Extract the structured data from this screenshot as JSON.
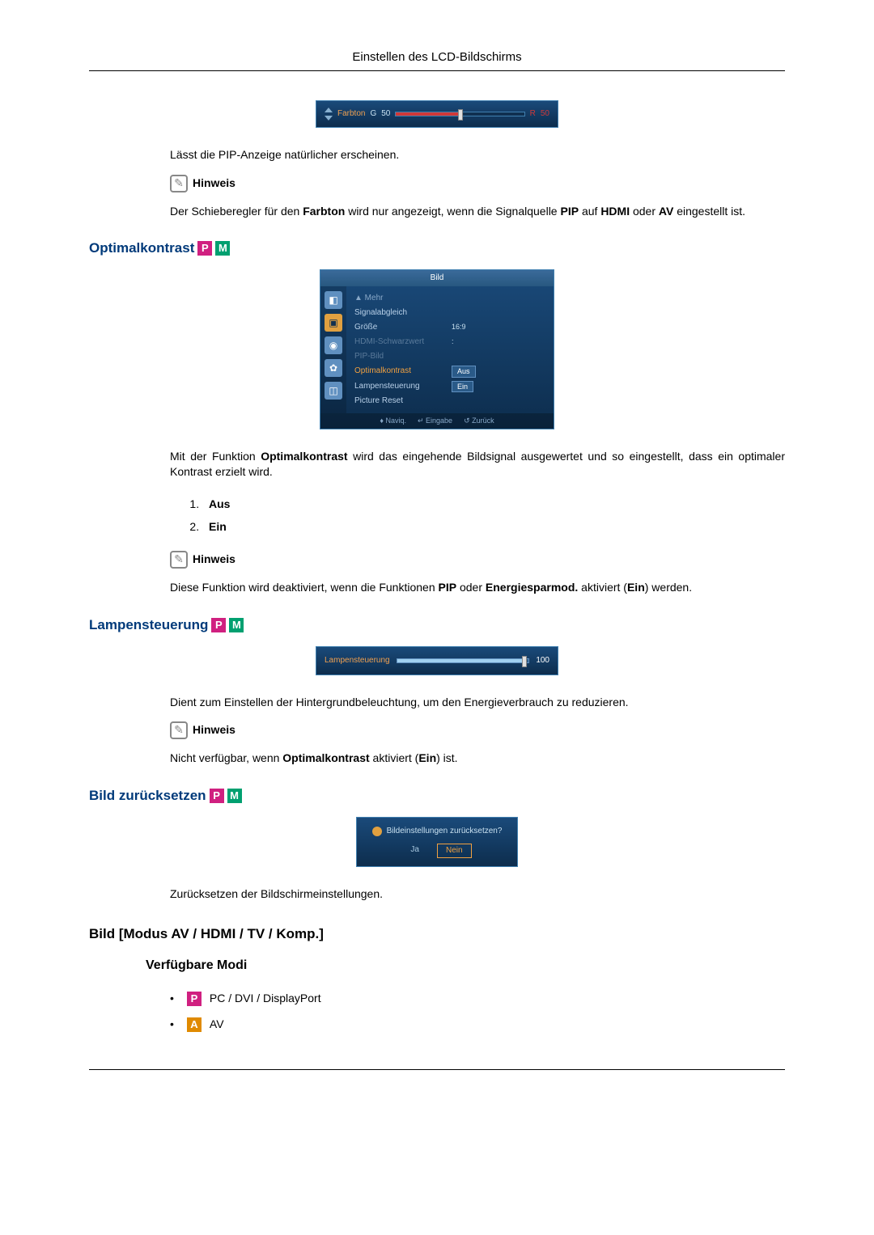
{
  "page": {
    "title": "Einstellen des LCD-Bildschirms"
  },
  "farbton_slider": {
    "label": "Farbton",
    "left_letter": "G",
    "left_value": "50",
    "right_letter": "R",
    "right_value": "50",
    "fill_percent": 50,
    "colors": {
      "panel_bg": "#14406a",
      "accent": "#f0a050",
      "fill": "#d03838"
    }
  },
  "pip_body": "Lässt die PIP-Anzeige natürlicher erscheinen.",
  "hinweis_label": "Hinweis",
  "farbton_note_prefix": "Der Schieberegler für den ",
  "farbton_note_bold1": "Farbton",
  "farbton_note_mid": " wird nur angezeigt, wenn die Signalquelle ",
  "farbton_note_bold2": "PIP",
  "farbton_note_mid2": " auf ",
  "farbton_note_bold3": "HDMI",
  "farbton_note_mid3": " oder ",
  "farbton_note_bold4": "AV",
  "farbton_note_end": " eingestellt ist.",
  "sections": {
    "optimal_title": "Optimalkontrast",
    "lamp_title": "Lampensteuerung",
    "reset_title": "Bild zurücksetzen",
    "mode_title": "Bild [Modus AV / HDMI / TV / Komp.]",
    "avail_title": "Verfügbare Modi"
  },
  "osd": {
    "tab": "Bild",
    "mehr": "▲ Mehr",
    "items": [
      {
        "label": "Signalabgleich",
        "value": ""
      },
      {
        "label": "Größe",
        "value": "16:9"
      },
      {
        "label": "HDMI-Schwarzwert",
        "value": ":",
        "dim": true
      },
      {
        "label": "PIP-Bild",
        "value": "",
        "dim": true
      },
      {
        "label": "Optimalkontrast",
        "value_pill": "Aus",
        "hl": true
      },
      {
        "label": "Lampensteuerung",
        "value_pill": "Ein"
      },
      {
        "label": "Picture Reset",
        "value": ""
      }
    ],
    "footer": {
      "nav": "♦ Naviq.",
      "enter": "↵ Eingabe",
      "back": "↺ Zurück"
    }
  },
  "optimal_body_prefix": "Mit der Funktion ",
  "optimal_body_bold": "Optimalkontrast",
  "optimal_body_rest": " wird das eingehende Bildsignal ausgewertet und so eingestellt, dass ein optimaler Kontrast erzielt wird.",
  "optimal_list": {
    "i1": "Aus",
    "i2": "Ein"
  },
  "optimal_note_prefix": "Diese Funktion wird deaktiviert, wenn die Funktionen ",
  "optimal_note_b1": "PIP",
  "optimal_note_m1": " oder ",
  "optimal_note_b2": "Energiesparmod.",
  "optimal_note_m2": " aktiviert (",
  "optimal_note_b3": "Ein",
  "optimal_note_end": ") werden.",
  "lamp_slider": {
    "label": "Lampensteuerung",
    "value": "100",
    "fill_percent": 98
  },
  "lamp_body": "Dient zum Einstellen der Hintergrundbeleuchtung, um den Energieverbrauch zu reduzieren.",
  "lamp_note_prefix": "Nicht verfügbar, wenn ",
  "lamp_note_b1": "Optimalkontrast",
  "lamp_note_m1": " aktiviert (",
  "lamp_note_b2": "Ein",
  "lamp_note_end": ") ist.",
  "reset_dialog": {
    "question": "Bildeinstellungen zurücksetzen?",
    "yes": "Ja",
    "no": "Nein"
  },
  "reset_body": "Zurücksetzen der Bildschirmeinstellungen.",
  "modes": {
    "m1": "PC / DVI / DisplayPort",
    "m2": "AV"
  },
  "badges": {
    "p": "P",
    "m": "M",
    "a": "A"
  }
}
